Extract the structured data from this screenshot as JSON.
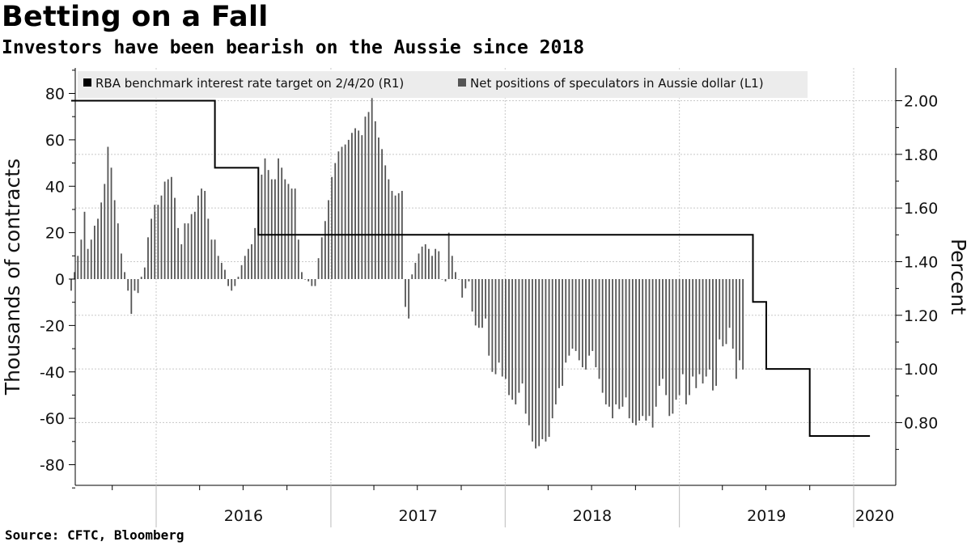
{
  "header": {
    "title": "Betting on a Fall",
    "subtitle": "Investors have been bearish on the Aussie since 2018"
  },
  "footer": {
    "source": "Source: CFTC, Bloomberg"
  },
  "colors": {
    "line": "#000000",
    "bars": "#555555",
    "grid": "#c8c8c8",
    "legend_bg": "#ececec"
  },
  "chart_data": {
    "type": "bar",
    "title": "Betting on a Fall",
    "subtitle": "Investors have been bearish on the Aussie since 2018",
    "ylabel_left": "Thousands of contracts",
    "ylabel_right": "Percent",
    "ylim_left": [
      -90,
      90
    ],
    "ylim_right": [
      0.62,
      2.14
    ],
    "yticks_left": [
      80,
      60,
      40,
      20,
      0,
      -20,
      -40,
      -60,
      -80
    ],
    "ytick_labels_left": [
      "80",
      "60",
      "40",
      "20",
      "0",
      "-20",
      "-40",
      "-60",
      "-80"
    ],
    "yticks_right": [
      2.0,
      1.8,
      1.6,
      1.4,
      1.2,
      1.0,
      0.8
    ],
    "ytick_labels_right": [
      "2.00",
      "1.80",
      "1.60",
      "1.40",
      "1.20",
      "1.00",
      "0.80"
    ],
    "x_categories": [
      "2016",
      "2017",
      "2018",
      "2019",
      "2020"
    ],
    "grid": true,
    "legend": {
      "placement": "top-left",
      "entries": [
        {
          "label": "RBA benchmark interest rate target on 2/4/20 (R1)",
          "series": "rba"
        },
        {
          "label": "Net positions of speculators in Aussie dollar (L1)",
          "series": "positions"
        }
      ]
    },
    "series": [
      {
        "name": "Net positions of speculators in Aussie dollar (L1)",
        "kind": "bar",
        "axis": "left",
        "unit": "thousands of contracts",
        "x_start": "2015-07-07",
        "x_step_days": 7,
        "values": [
          -5,
          3,
          10,
          17,
          29,
          13,
          17,
          23,
          26,
          33,
          41,
          57,
          48,
          34,
          24,
          11,
          3,
          -5,
          -15,
          -5,
          -6,
          1,
          5,
          18,
          26,
          32,
          32,
          36,
          42,
          43,
          44,
          35,
          22,
          15,
          24,
          24,
          28,
          29,
          36,
          39,
          38,
          26,
          17,
          17,
          10,
          7,
          4,
          -3,
          -5,
          -3,
          1,
          6,
          10,
          13,
          15,
          22,
          30,
          45,
          52,
          47,
          43,
          43,
          52,
          48,
          43,
          41,
          39,
          39,
          17,
          3,
          0,
          -1,
          -3,
          -3,
          9,
          18,
          25,
          34,
          44,
          50,
          55,
          57,
          58,
          60,
          63,
          65,
          64,
          62,
          70,
          72,
          78,
          68,
          61,
          56,
          49,
          43,
          38,
          36,
          37,
          38,
          -12,
          -17,
          2,
          7,
          11,
          14,
          15,
          13,
          10,
          13,
          12,
          0,
          -1,
          20,
          10,
          3,
          0,
          -8,
          -4,
          -1,
          -14,
          -20,
          -21,
          -21,
          -17,
          -33,
          -40,
          -41,
          -36,
          -42,
          -43,
          -50,
          -52,
          -54,
          -49,
          -45,
          -58,
          -63,
          -70,
          -73,
          -72,
          -69,
          -70,
          -68,
          -60,
          -54,
          -47,
          -46,
          -36,
          -33,
          -30,
          -31,
          -35,
          -38,
          -39,
          -33,
          -31,
          -38,
          -43,
          -49,
          -54,
          -55,
          -60,
          -54,
          -56,
          -55,
          -51,
          -60,
          -62,
          -63,
          -61,
          -59,
          -61,
          -59,
          -64,
          -55,
          -46,
          -43,
          -50,
          -59,
          -58,
          -52,
          -50,
          -41,
          -54,
          -50,
          -42,
          -47,
          -41,
          -45,
          -42,
          -39,
          -48,
          -46,
          -26,
          -29,
          -28,
          -21,
          -30,
          -43,
          -35,
          -39
        ]
      },
      {
        "name": "RBA benchmark interest rate target on 2/4/20 (R1)",
        "kind": "step-line",
        "axis": "right",
        "unit": "percent",
        "points": [
          [
            "2015-07-07",
            2.0
          ],
          [
            "2016-05-03",
            2.0
          ],
          [
            "2016-05-03",
            1.75
          ],
          [
            "2016-08-02",
            1.75
          ],
          [
            "2016-08-02",
            1.5
          ],
          [
            "2019-06-04",
            1.5
          ],
          [
            "2019-06-04",
            1.25
          ],
          [
            "2019-07-02",
            1.25
          ],
          [
            "2019-07-02",
            1.0
          ],
          [
            "2019-10-01",
            1.0
          ],
          [
            "2019-10-01",
            0.75
          ],
          [
            "2020-02-04",
            0.75
          ]
        ]
      }
    ]
  }
}
